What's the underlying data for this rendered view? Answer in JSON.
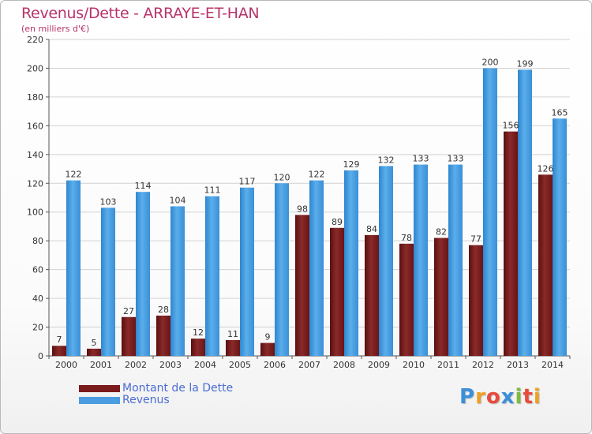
{
  "header": {
    "title": "Revenus/Dette - ARRAYE-ET-HAN",
    "subtitle": "(en milliers d'€)"
  },
  "legend": {
    "items": [
      {
        "label": "Montant de la Dette",
        "color": "#7b1a1a"
      },
      {
        "label": "Revenus",
        "color": "#4a9de0"
      }
    ]
  },
  "logo": {
    "text": "Proxiti",
    "letters": [
      {
        "ch": "P",
        "color": "#3a8fd8"
      },
      {
        "ch": "r",
        "color": "#f0a020"
      },
      {
        "ch": "o",
        "color": "#e84a3c"
      },
      {
        "ch": "x",
        "color": "#3a8fd8"
      },
      {
        "ch": "i",
        "color": "#7fba3c"
      },
      {
        "ch": "t",
        "color": "#e84a3c"
      },
      {
        "ch": "i",
        "color": "#f0a020"
      }
    ]
  },
  "chart_data": {
    "type": "bar",
    "title": "Revenus/Dette - ARRAYE-ET-HAN",
    "subtitle": "(en milliers d'€)",
    "categories": [
      "2000",
      "2001",
      "2002",
      "2003",
      "2004",
      "2005",
      "2006",
      "2007",
      "2008",
      "2009",
      "2010",
      "2011",
      "2012",
      "2013",
      "2014"
    ],
    "series": [
      {
        "name": "Montant de la Dette",
        "color": "#7b1a1a",
        "values": [
          7,
          5,
          27,
          28,
          12,
          11,
          9,
          98,
          89,
          84,
          78,
          82,
          77,
          156,
          126
        ]
      },
      {
        "name": "Revenus",
        "color": "#4a9de0",
        "values": [
          122,
          103,
          114,
          104,
          111,
          117,
          120,
          122,
          129,
          132,
          133,
          133,
          200,
          199,
          165
        ]
      }
    ],
    "ylim": [
      0,
      220
    ],
    "yticks": [
      0,
      20,
      40,
      60,
      80,
      100,
      120,
      140,
      160,
      180,
      200,
      220
    ],
    "grid": true,
    "legend_position": "bottom-left"
  }
}
